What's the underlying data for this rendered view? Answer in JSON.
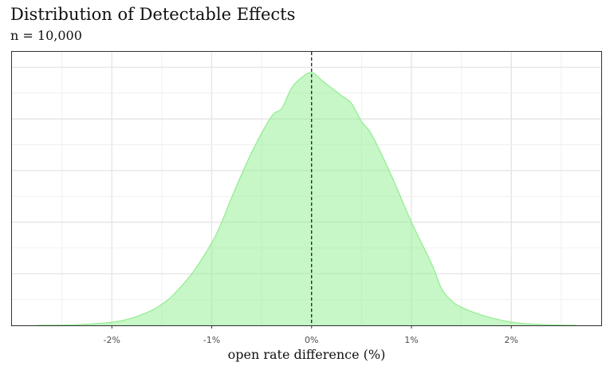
{
  "chart_data": {
    "type": "area",
    "title": "Distribution of Detectable Effects",
    "subtitle": "n = 10,000",
    "xlabel": "open rate difference (%)",
    "ylabel": "",
    "xlim": [
      -3.0,
      2.9
    ],
    "ylim": [
      0,
      0.53
    ],
    "xticks": [
      -2,
      -1,
      0,
      1,
      2
    ],
    "xtick_labels": [
      "-2%",
      "-1%",
      "0%",
      "1%",
      "2%"
    ],
    "y_axis_labels_shown": false,
    "grid": true,
    "vline": 0,
    "fill_color": "#90EE90",
    "line_color": "#90EE90",
    "vline_color": "#000000",
    "series": [
      {
        "x": [
          -2.75,
          -2.4,
          -2.2,
          -2.0,
          -1.8,
          -1.6,
          -1.5,
          -1.4,
          -1.2,
          -1.0,
          -0.9,
          -0.8,
          -0.6,
          -0.4,
          -0.3,
          -0.2,
          -0.1,
          0.0,
          0.1,
          0.2,
          0.3,
          0.4,
          0.5,
          0.6,
          0.8,
          1.0,
          1.2,
          1.3,
          1.4,
          1.5,
          1.7,
          1.9,
          2.1,
          2.4,
          2.65
        ],
        "y": [
          0.0,
          0.001,
          0.003,
          0.006,
          0.014,
          0.029,
          0.041,
          0.056,
          0.1,
          0.16,
          0.2,
          0.248,
          0.335,
          0.405,
          0.42,
          0.46,
          0.48,
          0.49,
          0.475,
          0.46,
          0.445,
          0.43,
          0.395,
          0.37,
          0.29,
          0.2,
          0.12,
          0.072,
          0.048,
          0.035,
          0.02,
          0.01,
          0.004,
          0.001,
          0.0
        ]
      }
    ]
  }
}
